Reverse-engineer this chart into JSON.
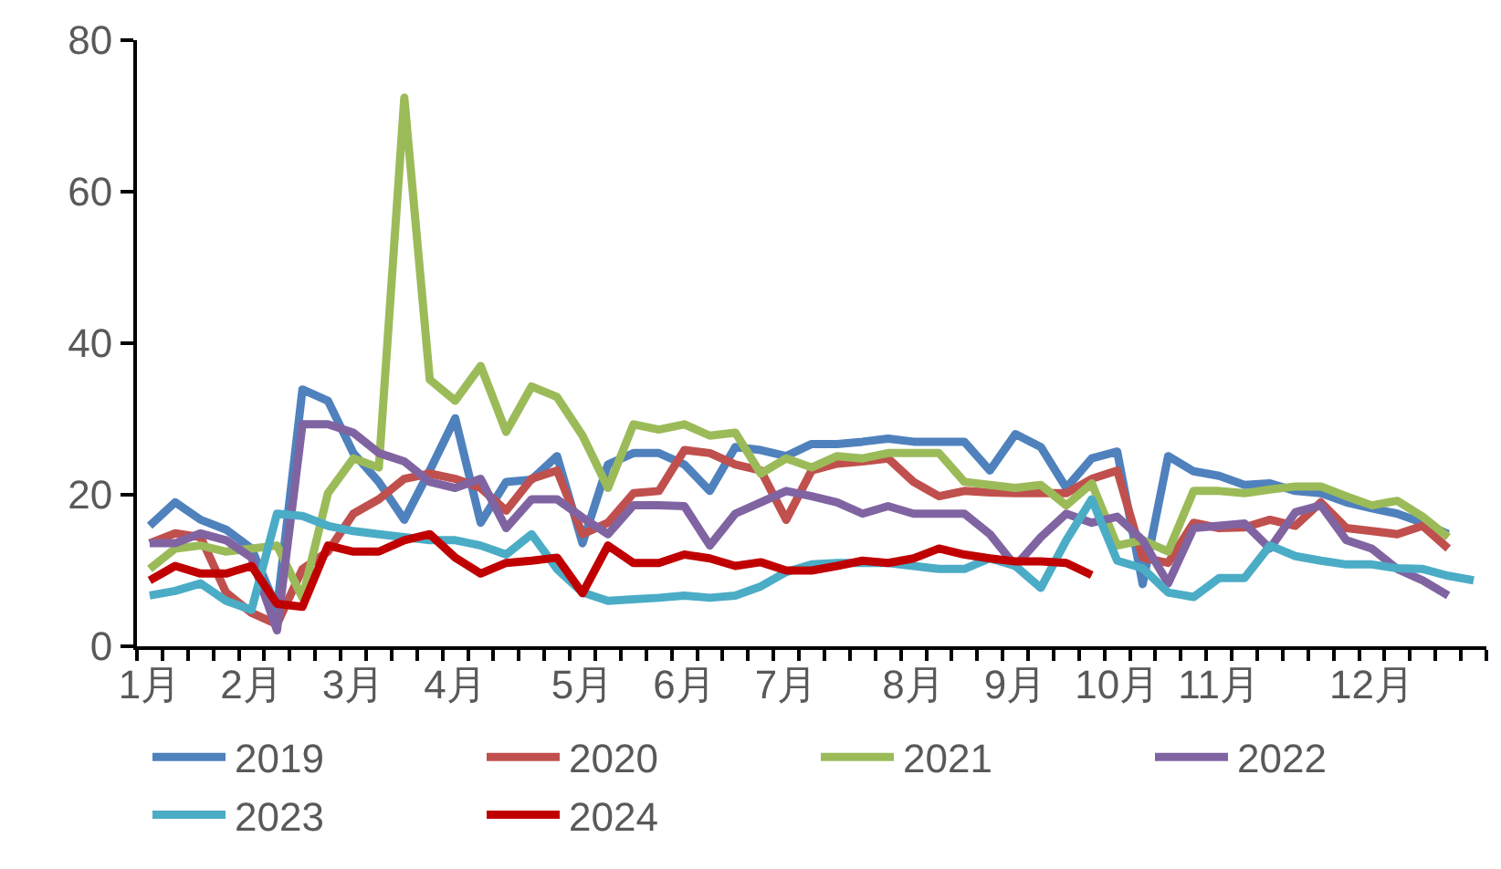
{
  "chart_data": {
    "type": "line",
    "categories": [
      "1月",
      null,
      null,
      null,
      "2月",
      null,
      null,
      null,
      "3月",
      null,
      null,
      null,
      "4月",
      null,
      null,
      null,
      null,
      "5月",
      null,
      null,
      null,
      "6月",
      null,
      null,
      null,
      "7月",
      null,
      null,
      null,
      null,
      "8月",
      null,
      null,
      null,
      "9月",
      null,
      null,
      null,
      "10月",
      null,
      null,
      null,
      "11月",
      null,
      null,
      null,
      null,
      null,
      "12月",
      null,
      null,
      null,
      null
    ],
    "ylim": [
      0,
      80
    ],
    "yticks": [
      0,
      20,
      40,
      60,
      80
    ],
    "legend": "bottom",
    "line_style": "solid",
    "marker": "none",
    "series": [
      {
        "name": "2019",
        "color": "#4f81bd",
        "values": [
          15.9,
          19,
          16.7,
          15.4,
          12.9,
          5,
          33.9,
          32.4,
          25.5,
          21.7,
          16.7,
          23.2,
          30.1,
          16.3,
          21.7,
          22,
          25.1,
          13.6,
          24,
          25.5,
          25.5,
          24,
          20.5,
          26.3,
          25.9,
          25.1,
          26.7,
          26.7,
          27,
          27.4,
          27,
          27,
          27,
          23.2,
          28,
          26.3,
          20.9,
          24.8,
          25.7,
          8.2,
          25.1,
          23.1,
          22.5,
          21.3,
          21.5,
          20.5,
          20.2,
          19,
          18.2,
          17.5,
          16.3,
          14.8,
          null
        ]
      },
      {
        "name": "2020",
        "color": "#c0504d",
        "values": [
          13.6,
          14.9,
          14.4,
          7.1,
          4.4,
          2.9,
          10.2,
          12.5,
          17.5,
          19.4,
          22.1,
          22.8,
          22.1,
          20.9,
          17.9,
          22.1,
          23.2,
          14.8,
          16.3,
          20.2,
          20.5,
          25.9,
          25.5,
          24,
          23.2,
          16.7,
          23.2,
          24.1,
          24.4,
          24.8,
          21.7,
          19.8,
          20.5,
          20.3,
          20.2,
          20.2,
          20.2,
          22.1,
          23.2,
          11.7,
          11,
          16.3,
          15.6,
          15.7,
          16.7,
          15.9,
          19,
          15.6,
          15.2,
          14.8,
          15.9,
          12.9,
          null
        ]
      },
      {
        "name": "2021",
        "color": "#9bbb59",
        "values": [
          10.2,
          12.9,
          13.3,
          12.5,
          12.9,
          13.3,
          6.4,
          20.2,
          24.8,
          23.6,
          72.4,
          35.2,
          32.4,
          37,
          28.3,
          34.3,
          32.9,
          27.8,
          20.9,
          29.3,
          28.6,
          29.3,
          27.8,
          28.2,
          22.8,
          24.8,
          23.6,
          25.1,
          24.8,
          25.5,
          25.5,
          25.5,
          21.7,
          21.3,
          20.9,
          21.3,
          18.6,
          21.5,
          13.3,
          14,
          12.5,
          20.5,
          20.5,
          20.2,
          20.7,
          21.1,
          21.1,
          19.8,
          18.6,
          19.2,
          17.1,
          14.4,
          null
        ]
      },
      {
        "name": "2022",
        "color": "#8064a2",
        "values": [
          13.6,
          13.6,
          14.9,
          14,
          11.7,
          2.1,
          29.3,
          29.3,
          28.2,
          25.5,
          24.4,
          21.7,
          20.9,
          22.1,
          15.6,
          19.4,
          19.4,
          17,
          14.8,
          18.6,
          18.6,
          18.5,
          13.3,
          17.5,
          19,
          20.5,
          19.8,
          19,
          17.5,
          18.5,
          17.5,
          17.5,
          17.5,
          14.8,
          10.6,
          14.4,
          17.5,
          16.3,
          17.1,
          14,
          8.3,
          15.6,
          15.9,
          16.2,
          12.9,
          17.7,
          18.6,
          14,
          12.9,
          10.2,
          8.7,
          6.7,
          null
        ]
      },
      {
        "name": "2023",
        "color": "#4bacc6",
        "values": [
          6.7,
          7.3,
          8.3,
          6,
          4.8,
          17.5,
          17.2,
          15.9,
          15.2,
          14.8,
          14.4,
          14,
          14,
          13.3,
          12.1,
          14.8,
          10.2,
          7.1,
          6,
          6.2,
          6.4,
          6.7,
          6.4,
          6.7,
          7.9,
          9.8,
          10.8,
          11,
          11,
          11,
          10.6,
          10.2,
          10.2,
          11.6,
          10.6,
          7.7,
          14,
          19.4,
          11.3,
          10.3,
          7.1,
          6.5,
          9,
          9,
          13.3,
          11.9,
          11.3,
          10.8,
          10.8,
          10.3,
          10.2,
          9.3,
          8.7
        ]
      },
      {
        "name": "2024",
        "color": "#c00000",
        "values": [
          8.7,
          10.6,
          9.6,
          9.6,
          10.6,
          5.6,
          5.2,
          13.3,
          12.5,
          12.5,
          14,
          14.8,
          11.7,
          9.6,
          11,
          11.3,
          11.7,
          7,
          13.3,
          11,
          11,
          12.1,
          11.6,
          10.6,
          11.1,
          10,
          10,
          10.6,
          11.3,
          11,
          11.6,
          12.9,
          12.1,
          11.6,
          11.2,
          11.2,
          11,
          9.4,
          null,
          null,
          null,
          null,
          null,
          null,
          null,
          null,
          null,
          null,
          null,
          null,
          null,
          null,
          null
        ]
      }
    ]
  }
}
